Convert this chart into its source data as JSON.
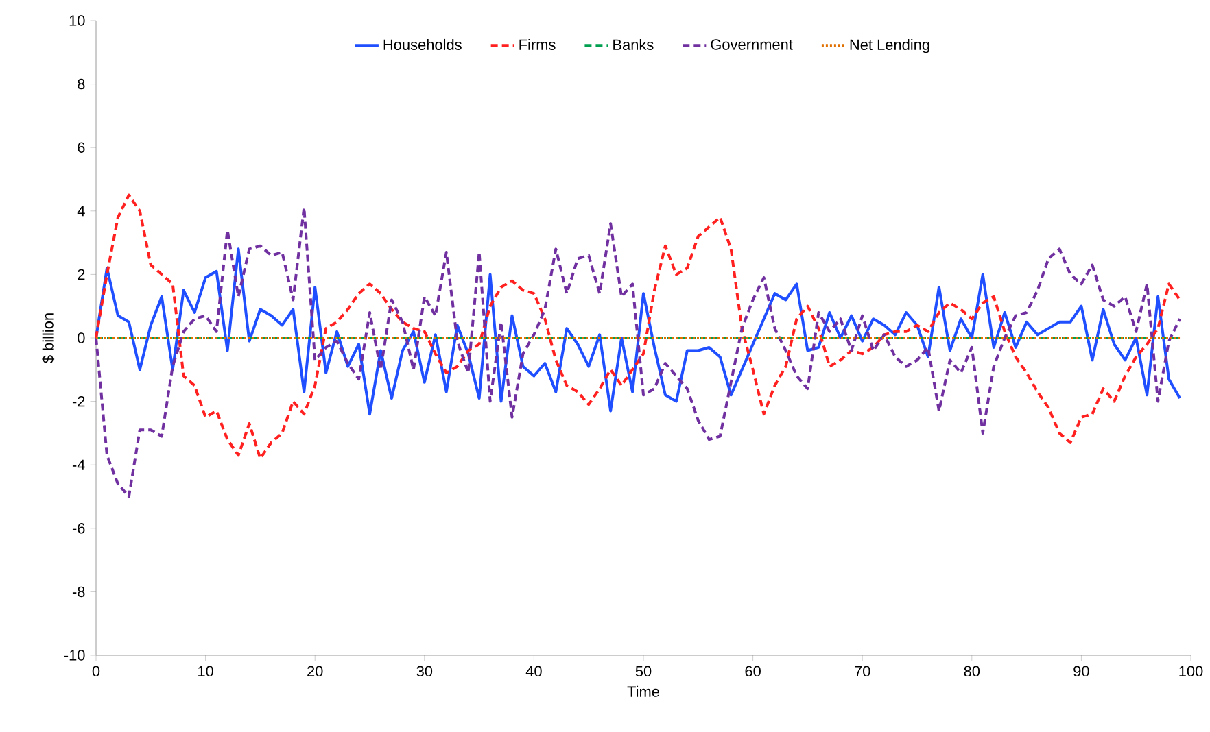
{
  "chart_data": {
    "type": "line",
    "xlabel": "Time",
    "ylabel": "$ billion",
    "x": [
      0,
      1,
      2,
      3,
      4,
      5,
      6,
      7,
      8,
      9,
      10,
      11,
      12,
      13,
      14,
      15,
      16,
      17,
      18,
      19,
      20,
      21,
      22,
      23,
      24,
      25,
      26,
      27,
      28,
      29,
      30,
      31,
      32,
      33,
      34,
      35,
      36,
      37,
      38,
      39,
      40,
      41,
      42,
      43,
      44,
      45,
      46,
      47,
      48,
      49,
      50,
      51,
      52,
      53,
      54,
      55,
      56,
      57,
      58,
      59,
      60,
      61,
      62,
      63,
      64,
      65,
      66,
      67,
      68,
      69,
      70,
      71,
      72,
      73,
      74,
      75,
      76,
      77,
      78,
      79,
      80,
      81,
      82,
      83,
      84,
      85,
      86,
      87,
      88,
      89,
      90,
      91,
      92,
      93,
      94,
      95,
      96,
      97,
      98,
      99
    ],
    "series": [
      {
        "name": "Households",
        "color": "#1f4fff",
        "line_style": "solid",
        "values": [
          0,
          2.2,
          0.7,
          0.5,
          -1.0,
          0.4,
          1.3,
          -1.0,
          1.5,
          0.8,
          1.9,
          2.1,
          -0.4,
          2.8,
          -0.1,
          0.9,
          0.7,
          0.4,
          0.9,
          -1.7,
          1.6,
          -1.1,
          0.2,
          -0.9,
          -0.2,
          -2.4,
          -0.4,
          -1.9,
          -0.4,
          0.2,
          -1.4,
          0.1,
          -1.7,
          0.4,
          -0.5,
          -1.9,
          2.0,
          -2.0,
          0.7,
          -0.9,
          -1.2,
          -0.8,
          -1.7,
          0.3,
          -0.2,
          -0.9,
          0.1,
          -2.3,
          0.0,
          -1.7,
          1.4,
          -0.3,
          -1.8,
          -2.0,
          -0.4,
          -0.4,
          -0.3,
          -0.6,
          -1.8,
          -1.0,
          -0.2,
          0.6,
          1.4,
          1.2,
          1.7,
          -0.4,
          -0.3,
          0.8,
          0.0,
          0.7,
          -0.1,
          0.6,
          0.4,
          0.1,
          0.8,
          0.4,
          -0.6,
          1.6,
          -0.4,
          0.6,
          0.0,
          2.0,
          -0.3,
          0.8,
          -0.3,
          0.5,
          0.1,
          0.3,
          0.5,
          0.5,
          1.0,
          -0.7,
          0.9,
          -0.2,
          -0.7,
          0.0,
          -1.8,
          1.3,
          -1.3,
          -1.9
        ]
      },
      {
        "name": "Firms",
        "color": "#ff2020",
        "line_style": "dashed",
        "values": [
          0,
          2.0,
          3.8,
          4.5,
          4.0,
          2.3,
          2.0,
          1.7,
          -1.2,
          -1.5,
          -2.5,
          -2.3,
          -3.2,
          -3.7,
          -2.7,
          -3.8,
          -3.3,
          -3.0,
          -2.0,
          -2.4,
          -1.5,
          0.3,
          0.5,
          0.9,
          1.4,
          1.7,
          1.4,
          0.9,
          0.5,
          0.3,
          0.2,
          -0.5,
          -1.1,
          -0.9,
          -0.4,
          -0.2,
          1.0,
          1.6,
          1.8,
          1.5,
          1.4,
          0.6,
          -0.7,
          -1.5,
          -1.7,
          -2.1,
          -1.6,
          -1.0,
          -1.5,
          -1.0,
          -0.5,
          1.5,
          2.9,
          2.0,
          2.2,
          3.2,
          3.5,
          3.8,
          2.8,
          0.3,
          -1.0,
          -2.4,
          -1.5,
          -0.9,
          0.6,
          1.0,
          0.3,
          -0.9,
          -0.7,
          -0.4,
          -0.5,
          -0.3,
          0.1,
          0.2,
          0.2,
          0.4,
          0.2,
          0.8,
          1.1,
          0.9,
          0.6,
          1.1,
          1.3,
          0.2,
          -0.6,
          -1.1,
          -1.7,
          -2.2,
          -3.0,
          -3.3,
          -2.5,
          -2.4,
          -1.6,
          -2.0,
          -1.2,
          -0.6,
          -0.2,
          0.3,
          1.7,
          1.2
        ]
      },
      {
        "name": "Banks",
        "color": "#00a050",
        "line_style": "dashed",
        "values": [
          0,
          0,
          0,
          0,
          0,
          0,
          0,
          0,
          0,
          0,
          0,
          0,
          0,
          0,
          0,
          0,
          0,
          0,
          0,
          0,
          0,
          0,
          0,
          0,
          0,
          0,
          0,
          0,
          0,
          0,
          0,
          0,
          0,
          0,
          0,
          0,
          0,
          0,
          0,
          0,
          0,
          0,
          0,
          0,
          0,
          0,
          0,
          0,
          0,
          0,
          0,
          0,
          0,
          0,
          0,
          0,
          0,
          0,
          0,
          0,
          0,
          0,
          0,
          0,
          0,
          0,
          0,
          0,
          0,
          0,
          0,
          0,
          0,
          0,
          0,
          0,
          0,
          0,
          0,
          0,
          0,
          0,
          0,
          0,
          0,
          0,
          0,
          0,
          0,
          0,
          0,
          0,
          0,
          0,
          0,
          0,
          0,
          0,
          0,
          0
        ]
      },
      {
        "name": "Government",
        "color": "#7030a0",
        "line_style": "dashed",
        "values": [
          0,
          -3.7,
          -4.6,
          -5.0,
          -2.9,
          -2.9,
          -3.1,
          -0.9,
          0.2,
          0.6,
          0.7,
          0.2,
          3.4,
          1.3,
          2.8,
          2.9,
          2.6,
          2.7,
          1.2,
          4.1,
          -0.7,
          -0.3,
          -0.1,
          -0.8,
          -1.3,
          0.8,
          -1.0,
          1.2,
          0.5,
          -1.0,
          1.3,
          0.7,
          2.7,
          -0.1,
          -1.1,
          2.7,
          -2.0,
          0.5,
          -2.5,
          -0.5,
          0.1,
          0.9,
          2.8,
          1.4,
          2.5,
          2.6,
          1.4,
          3.6,
          1.3,
          1.7,
          -1.8,
          -1.6,
          -0.8,
          -1.2,
          -1.6,
          -2.6,
          -3.2,
          -3.1,
          -1.4,
          0.3,
          1.2,
          1.9,
          0.3,
          -0.4,
          -1.2,
          -1.6,
          0.8,
          0.2,
          0.6,
          -0.4,
          0.7,
          -0.4,
          0.1,
          -0.6,
          -0.9,
          -0.7,
          -0.3,
          -2.3,
          -0.7,
          -1.1,
          -0.3,
          -3.0,
          -0.9,
          0.0,
          0.7,
          0.8,
          1.5,
          2.5,
          2.8,
          2.0,
          1.7,
          2.3,
          1.2,
          1.0,
          1.3,
          0.2,
          1.7,
          -2.0,
          -0.1,
          0.6
        ]
      },
      {
        "name": "Net Lending",
        "color": "#e07000",
        "line_style": "dotted",
        "values": [
          0,
          0,
          0,
          0,
          0,
          0,
          0,
          0,
          0,
          0,
          0,
          0,
          0,
          0,
          0,
          0,
          0,
          0,
          0,
          0,
          0,
          0,
          0,
          0,
          0,
          0,
          0,
          0,
          0,
          0,
          0,
          0,
          0,
          0,
          0,
          0,
          0,
          0,
          0,
          0,
          0,
          0,
          0,
          0,
          0,
          0,
          0,
          0,
          0,
          0,
          0,
          0,
          0,
          0,
          0,
          0,
          0,
          0,
          0,
          0,
          0,
          0,
          0,
          0,
          0,
          0,
          0,
          0,
          0,
          0,
          0,
          0,
          0,
          0,
          0,
          0,
          0,
          0,
          0,
          0,
          0,
          0,
          0,
          0,
          0,
          0,
          0,
          0,
          0,
          0,
          0,
          0,
          0,
          0,
          0,
          0,
          0,
          0,
          0,
          0
        ]
      }
    ],
    "xlim": [
      0,
      100
    ],
    "xticks": [
      0,
      10,
      20,
      30,
      40,
      50,
      60,
      70,
      80,
      90,
      100
    ],
    "ylim": [
      -10,
      10
    ],
    "yticks": [
      -10,
      -8,
      -6,
      -4,
      -2,
      0,
      2,
      4,
      6,
      8,
      10
    ],
    "legend": "top",
    "grid": false,
    "marker": "none"
  }
}
